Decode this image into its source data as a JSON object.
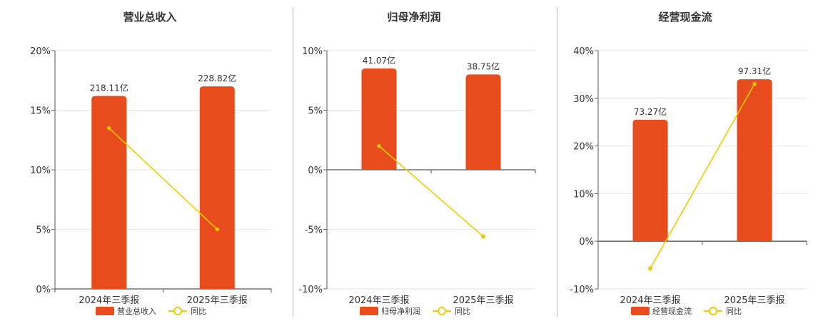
{
  "chart_data": [
    {
      "type": "bar",
      "title": "营业总收入",
      "categories": [
        "2024年三季报",
        "2025年三季报"
      ],
      "series": [
        {
          "name": "营业总收入",
          "type": "bar",
          "values": [
            16.2,
            17.0
          ],
          "labels": [
            "218.11亿",
            "228.82亿"
          ],
          "color": "#e84c1c"
        },
        {
          "name": "同比",
          "type": "line",
          "values": [
            13.5,
            5.0
          ],
          "color": "#f0cc00"
        }
      ],
      "ylim": [
        0,
        20
      ],
      "yticks": [
        "20%",
        "15%",
        "10%",
        "5%",
        "0%"
      ],
      "yticks_values": [
        20,
        15,
        10,
        5,
        0
      ],
      "grid": true,
      "legend": "bottom"
    },
    {
      "type": "bar",
      "title": "归母净利润",
      "categories": [
        "2024年三季报",
        "2025年三季报"
      ],
      "series": [
        {
          "name": "归母净利润",
          "type": "bar",
          "values": [
            8.5,
            8.0
          ],
          "labels": [
            "41.07亿",
            "38.75亿"
          ],
          "color": "#e84c1c"
        },
        {
          "name": "同比",
          "type": "line",
          "values": [
            2.0,
            -5.6
          ],
          "color": "#f0cc00"
        }
      ],
      "ylim": [
        -10,
        10
      ],
      "yticks": [
        "10%",
        "5%",
        "0%",
        "-5%",
        "-10%"
      ],
      "yticks_values": [
        10,
        5,
        0,
        -5,
        -10
      ],
      "grid": true,
      "legend": "bottom"
    },
    {
      "type": "bar",
      "title": "经营现金流",
      "categories": [
        "2024年三季报",
        "2025年三季报"
      ],
      "series": [
        {
          "name": "经营现金流",
          "type": "bar",
          "values": [
            25.5,
            34.0
          ],
          "labels": [
            "73.27亿",
            "97.31亿"
          ],
          "color": "#e84c1c"
        },
        {
          "name": "同比",
          "type": "line",
          "values": [
            -5.7,
            33.0
          ],
          "color": "#f0cc00"
        }
      ],
      "ylim": [
        -10,
        40
      ],
      "yticks": [
        "40%",
        "30%",
        "20%",
        "10%",
        "0%",
        "-10%"
      ],
      "yticks_values": [
        40,
        30,
        20,
        10,
        0,
        -10
      ],
      "grid": true,
      "legend": "bottom"
    }
  ]
}
